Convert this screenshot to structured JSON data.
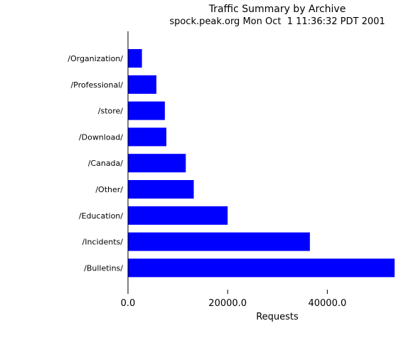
{
  "chart_data": {
    "type": "bar",
    "orientation": "horizontal",
    "title": "Traffic Summary by Archive",
    "subtitle": "spock.peak.org Mon Oct  1 11:36:32 PDT 2001",
    "xlabel": "Requests",
    "ylabel": "",
    "categories": [
      "/Organization/",
      "/Professional/",
      "/store/",
      "/Download/",
      "/Canada/",
      "/Other/",
      "/Education/",
      "/Incidents/",
      "/Bulletins/"
    ],
    "values": [
      2800,
      5700,
      7400,
      7700,
      11600,
      13200,
      20000,
      36500,
      53500
    ],
    "xlim": [
      0,
      53500
    ],
    "xticks": [
      0,
      20000,
      40000
    ],
    "xtick_labels": [
      "0.0",
      "20000.0",
      "40000.0"
    ],
    "grid": false,
    "legend": "none",
    "bar_color": "#0000ff",
    "axis_color": "#000000"
  }
}
